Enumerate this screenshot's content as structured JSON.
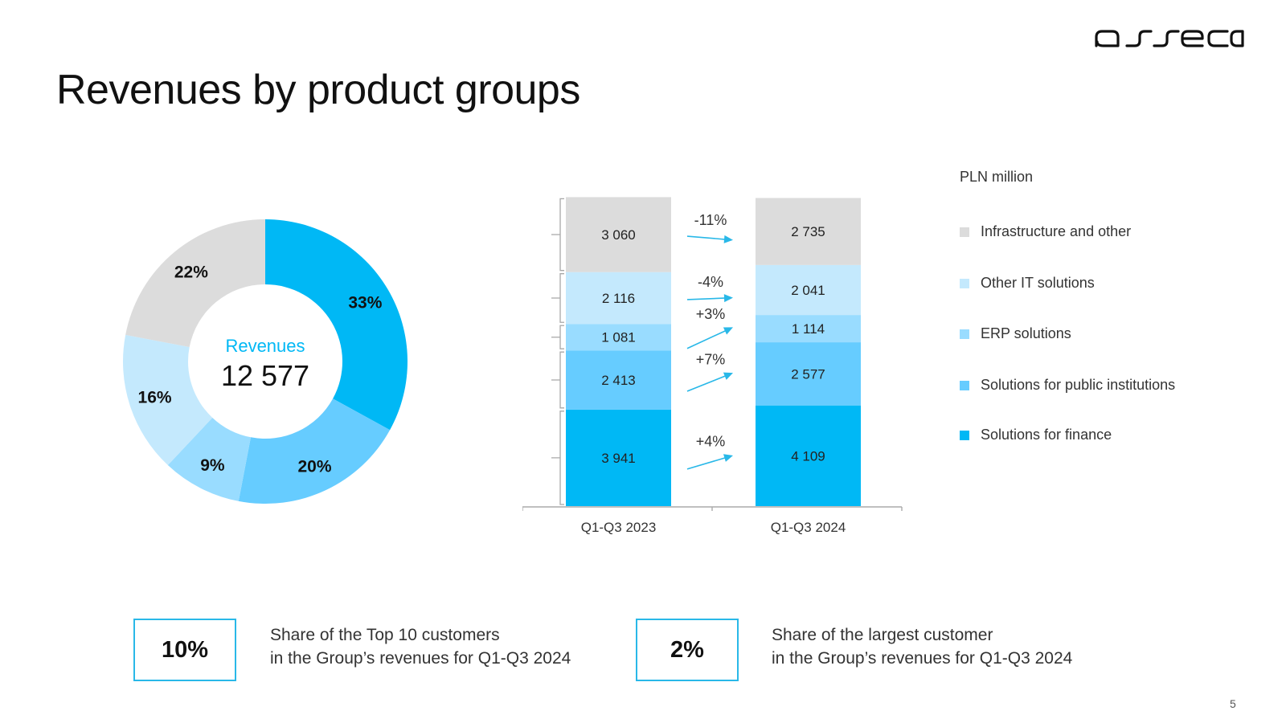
{
  "slide": {
    "title": "Revenues by product groups",
    "page_number": "5",
    "logo_text": "asseco"
  },
  "colors": {
    "finance": "#00b8f5",
    "public": "#66ccff",
    "erp": "#99dcff",
    "other_it": "#c4e9fd",
    "infra": "#dcdcdc",
    "accent": "#29b8e8"
  },
  "chart_data": [
    {
      "type": "pie",
      "variant": "donut",
      "center_label": "Revenues",
      "center_value": "12 577",
      "slices": [
        {
          "label": "Solutions for finance",
          "value": 33,
          "display": "33%",
          "color_key": "finance"
        },
        {
          "label": "Solutions for public institutions",
          "value": 20,
          "display": "20%",
          "color_key": "public"
        },
        {
          "label": "ERP solutions",
          "value": 9,
          "display": "9%",
          "color_key": "erp"
        },
        {
          "label": "Other IT solutions",
          "value": 16,
          "display": "16%",
          "color_key": "other_it"
        },
        {
          "label": "Infrastructure and other",
          "value": 22,
          "display": "22%",
          "color_key": "infra"
        }
      ]
    },
    {
      "type": "bar",
      "stacked": true,
      "unit": "PLN million",
      "categories": [
        "Q1-Q3 2023",
        "Q1-Q3 2024"
      ],
      "series": [
        {
          "name": "Solutions for finance",
          "color_key": "finance",
          "values": [
            3941,
            4109
          ],
          "labels": [
            "3 941",
            "4 109"
          ],
          "change": "+4%"
        },
        {
          "name": "Solutions for public institutions",
          "color_key": "public",
          "values": [
            2413,
            2577
          ],
          "labels": [
            "2 413",
            "2 577"
          ],
          "change": "+7%"
        },
        {
          "name": "ERP solutions",
          "color_key": "erp",
          "values": [
            1081,
            1114
          ],
          "labels": [
            "1 081",
            "1 114"
          ],
          "change": "+3%"
        },
        {
          "name": "Other IT solutions",
          "color_key": "other_it",
          "values": [
            2116,
            2041
          ],
          "labels": [
            "2 116",
            "2 041"
          ],
          "change": "-4%"
        },
        {
          "name": "Infrastructure and other",
          "color_key": "infra",
          "values": [
            3060,
            2735
          ],
          "labels": [
            "3 060",
            "2 735"
          ],
          "change": "-11%"
        }
      ]
    }
  ],
  "legend": {
    "unit": "PLN million",
    "items": [
      {
        "label": "Infrastructure and other",
        "color_key": "infra"
      },
      {
        "label": "Other IT solutions",
        "color_key": "other_it"
      },
      {
        "label": "ERP solutions",
        "color_key": "erp"
      },
      {
        "label": "Solutions for public institutions",
        "color_key": "public"
      },
      {
        "label": "Solutions for finance",
        "color_key": "finance"
      }
    ]
  },
  "kpis": [
    {
      "value": "10%",
      "line1": "Share of the Top 10 customers",
      "line2": "in the Group’s revenues for Q1-Q3 2024"
    },
    {
      "value": "2%",
      "line1": "Share of the largest customer",
      "line2": "in the Group’s revenues for Q1-Q3 2024"
    }
  ]
}
